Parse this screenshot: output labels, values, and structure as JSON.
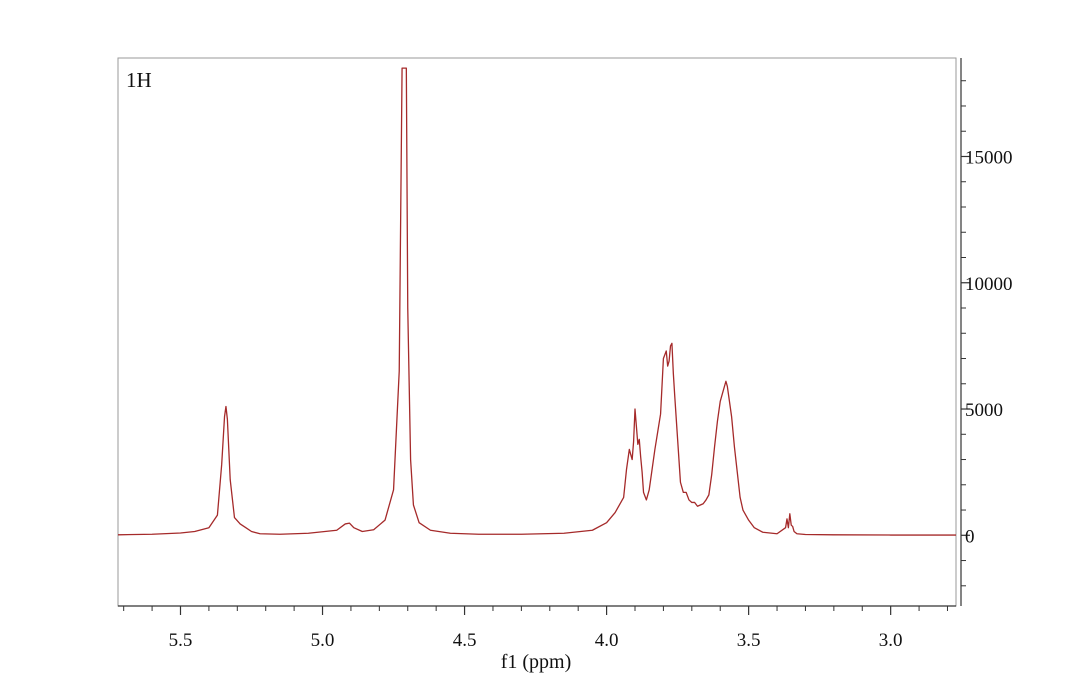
{
  "chart_data": {
    "type": "line",
    "panel_label": "1H",
    "xlabel": "f1 (ppm)",
    "ylabel": "",
    "x_reversed": true,
    "xlim": [
      5.72,
      2.77
    ],
    "ylim": [
      -2800,
      18900
    ],
    "x_ticks": [
      "5.5",
      "5.0",
      "4.5",
      "4.0",
      "3.5",
      "3.0"
    ],
    "y_ticks": [
      "15000",
      "10000",
      "5000",
      "0"
    ],
    "grid": false,
    "line_color": "#a52a2a",
    "series": [
      {
        "x": [
          5.72,
          5.6,
          5.5,
          5.45,
          5.4,
          5.37,
          5.355,
          5.345,
          5.34,
          5.335,
          5.325,
          5.31,
          5.29,
          5.27,
          5.25,
          5.22,
          5.15,
          5.05,
          4.95,
          4.92,
          4.905,
          4.89,
          4.86,
          4.82,
          4.78,
          4.75,
          4.73,
          4.72,
          4.715,
          4.71,
          4.705,
          4.7,
          4.69,
          4.68,
          4.66,
          4.62,
          4.55,
          4.45,
          4.3,
          4.15,
          4.05,
          4.0,
          3.97,
          3.94,
          3.93,
          3.92,
          3.91,
          3.905,
          3.9,
          3.895,
          3.89,
          3.885,
          3.88,
          3.875,
          3.87,
          3.86,
          3.85,
          3.84,
          3.83,
          3.82,
          3.81,
          3.8,
          3.79,
          3.785,
          3.78,
          3.775,
          3.77,
          3.765,
          3.76,
          3.75,
          3.74,
          3.73,
          3.72,
          3.71,
          3.7,
          3.69,
          3.68,
          3.67,
          3.66,
          3.65,
          3.64,
          3.63,
          3.62,
          3.61,
          3.6,
          3.59,
          3.58,
          3.575,
          3.57,
          3.56,
          3.55,
          3.54,
          3.53,
          3.52,
          3.5,
          3.48,
          3.45,
          3.4,
          3.37,
          3.365,
          3.36,
          3.355,
          3.35,
          3.345,
          3.34,
          3.33,
          3.3,
          3.2,
          3.0,
          2.77
        ],
        "y": [
          20,
          40,
          90,
          150,
          300,
          800,
          2800,
          4700,
          5100,
          4600,
          2200,
          700,
          450,
          300,
          150,
          60,
          40,
          80,
          200,
          450,
          480,
          300,
          150,
          220,
          600,
          1800,
          6500,
          18500,
          18500,
          18500,
          18500,
          9000,
          3000,
          1200,
          500,
          200,
          80,
          40,
          40,
          80,
          200,
          500,
          900,
          1500,
          2600,
          3400,
          3000,
          3700,
          5000,
          4300,
          3600,
          3800,
          3100,
          2500,
          1700,
          1400,
          1800,
          2600,
          3400,
          4100,
          4800,
          7000,
          7300,
          6700,
          6900,
          7500,
          7600,
          6400,
          5500,
          3800,
          2100,
          1700,
          1700,
          1400,
          1300,
          1300,
          1150,
          1200,
          1250,
          1400,
          1600,
          2400,
          3500,
          4500,
          5300,
          5700,
          6100,
          5900,
          5500,
          4700,
          3500,
          2500,
          1500,
          1000,
          600,
          300,
          120,
          60,
          300,
          650,
          300,
          850,
          400,
          350,
          150,
          60,
          30,
          20,
          10,
          10
        ]
      }
    ]
  }
}
